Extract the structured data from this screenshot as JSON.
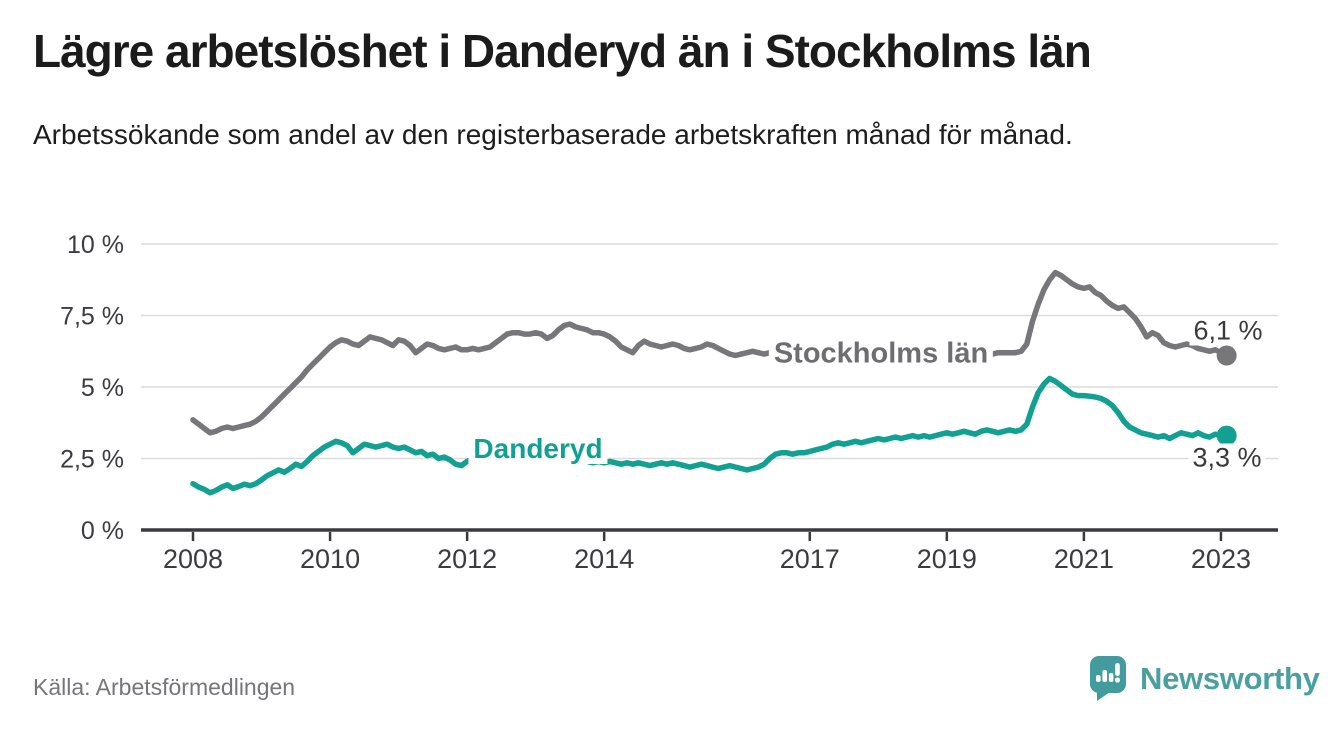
{
  "header": {
    "title": "Lägre arbetslöshet i Danderyd än i Stockholms län",
    "subtitle": "Arbetssökande som andel av den registerbaserade arbetskraften månad för månad."
  },
  "chart_data": {
    "type": "line",
    "title": "Lägre arbetslöshet i Danderyd än i Stockholms län",
    "subtitle": "Arbetssökande som andel av den registerbaserade arbetskraften månad för månad.",
    "unit": "%",
    "grid": true,
    "legend_position": "inline-labels",
    "ylim": [
      0,
      10
    ],
    "xlim": [
      2007.25,
      2023.85
    ],
    "y_ticks": [
      0,
      2.5,
      5,
      7.5,
      10
    ],
    "y_tick_labels": [
      "0 %",
      "2,5 %",
      "5 %",
      "7,5 %",
      "10 %"
    ],
    "x_tick_years": [
      2008,
      2010,
      2012,
      2014,
      2017,
      2019,
      2021,
      2023
    ],
    "x_tick_labels": [
      "2008",
      "2010",
      "2012",
      "2014",
      "2017",
      "2019",
      "2021",
      "2023"
    ],
    "start_year": 2008.0,
    "step_years": 0.08333,
    "series": [
      {
        "name": "Stockholms län",
        "color": "#77777b",
        "end_label": "6,1 %",
        "end_value": 6.1,
        "values": [
          3.85,
          3.7,
          3.55,
          3.4,
          3.45,
          3.55,
          3.6,
          3.55,
          3.6,
          3.65,
          3.7,
          3.8,
          3.95,
          4.15,
          4.35,
          4.55,
          4.75,
          4.95,
          5.15,
          5.35,
          5.6,
          5.8,
          6.0,
          6.2,
          6.4,
          6.55,
          6.65,
          6.6,
          6.5,
          6.45,
          6.6,
          6.75,
          6.7,
          6.65,
          6.55,
          6.45,
          6.65,
          6.6,
          6.45,
          6.2,
          6.35,
          6.5,
          6.45,
          6.35,
          6.3,
          6.35,
          6.4,
          6.3,
          6.3,
          6.35,
          6.3,
          6.35,
          6.4,
          6.55,
          6.7,
          6.85,
          6.9,
          6.9,
          6.85,
          6.85,
          6.9,
          6.85,
          6.7,
          6.8,
          7.0,
          7.15,
          7.2,
          7.1,
          7.05,
          7.0,
          6.9,
          6.9,
          6.85,
          6.75,
          6.6,
          6.4,
          6.3,
          6.2,
          6.45,
          6.6,
          6.5,
          6.45,
          6.4,
          6.45,
          6.5,
          6.45,
          6.35,
          6.3,
          6.35,
          6.4,
          6.5,
          6.45,
          6.35,
          6.25,
          6.15,
          6.1,
          6.15,
          6.2,
          6.25,
          6.2,
          6.15,
          6.2,
          6.25,
          6.2,
          6.15,
          6.1,
          6.15,
          6.2,
          6.2,
          6.25,
          6.2,
          6.15,
          6.2,
          6.25,
          6.3,
          6.25,
          6.2,
          6.15,
          6.2,
          6.25,
          6.2,
          6.15,
          6.1,
          6.15,
          6.2,
          6.25,
          6.2,
          6.15,
          6.1,
          6.15,
          6.2,
          6.15,
          6.15,
          6.2,
          6.15,
          6.1,
          6.15,
          6.2,
          6.25,
          6.2,
          6.15,
          6.2,
          6.2,
          6.2,
          6.2,
          6.25,
          6.5,
          7.3,
          7.9,
          8.4,
          8.75,
          9.0,
          8.9,
          8.75,
          8.6,
          8.5,
          8.45,
          8.5,
          8.3,
          8.2,
          8.0,
          7.85,
          7.75,
          7.8,
          7.6,
          7.4,
          7.1,
          6.75,
          6.9,
          6.8,
          6.55,
          6.45,
          6.4,
          6.45,
          6.5,
          6.45,
          6.35,
          6.3,
          6.25,
          6.3,
          6.2,
          6.1
        ]
      },
      {
        "name": "Danderyd",
        "color": "#12a093",
        "end_label": "3,3 %",
        "end_value": 3.3,
        "values": [
          1.62,
          1.5,
          1.42,
          1.3,
          1.38,
          1.5,
          1.58,
          1.45,
          1.52,
          1.6,
          1.55,
          1.62,
          1.75,
          1.9,
          2.0,
          2.1,
          2.02,
          2.15,
          2.3,
          2.22,
          2.4,
          2.6,
          2.75,
          2.9,
          3.0,
          3.1,
          3.05,
          2.95,
          2.7,
          2.85,
          3.0,
          2.95,
          2.9,
          2.95,
          3.0,
          2.9,
          2.85,
          2.9,
          2.8,
          2.7,
          2.75,
          2.6,
          2.65,
          2.5,
          2.55,
          2.45,
          2.3,
          2.25,
          2.4,
          2.5,
          2.45,
          2.5,
          2.55,
          2.5,
          2.55,
          2.6,
          2.55,
          2.6,
          2.65,
          2.6,
          2.65,
          2.6,
          2.65,
          2.6,
          2.55,
          2.6,
          2.55,
          2.5,
          2.45,
          2.4,
          2.35,
          2.4,
          2.35,
          2.4,
          2.35,
          2.3,
          2.35,
          2.3,
          2.35,
          2.3,
          2.25,
          2.3,
          2.35,
          2.3,
          2.35,
          2.3,
          2.25,
          2.2,
          2.25,
          2.3,
          2.25,
          2.2,
          2.15,
          2.2,
          2.25,
          2.2,
          2.15,
          2.1,
          2.15,
          2.2,
          2.3,
          2.5,
          2.65,
          2.7,
          2.7,
          2.65,
          2.7,
          2.7,
          2.75,
          2.8,
          2.85,
          2.9,
          3.0,
          3.05,
          3.0,
          3.05,
          3.1,
          3.05,
          3.1,
          3.15,
          3.2,
          3.15,
          3.2,
          3.25,
          3.2,
          3.25,
          3.3,
          3.25,
          3.3,
          3.25,
          3.3,
          3.35,
          3.4,
          3.35,
          3.4,
          3.45,
          3.4,
          3.35,
          3.45,
          3.5,
          3.45,
          3.4,
          3.45,
          3.5,
          3.45,
          3.5,
          3.7,
          4.3,
          4.8,
          5.1,
          5.3,
          5.2,
          5.05,
          4.9,
          4.75,
          4.7,
          4.7,
          4.68,
          4.65,
          4.6,
          4.5,
          4.35,
          4.1,
          3.8,
          3.6,
          3.5,
          3.4,
          3.35,
          3.3,
          3.25,
          3.3,
          3.2,
          3.3,
          3.4,
          3.35,
          3.3,
          3.4,
          3.3,
          3.25,
          3.35,
          3.3,
          3.3
        ]
      }
    ]
  },
  "style_colors": {
    "grid": "#dcdcdc",
    "axis": "#3a3a3e",
    "tick_text": "#3b3b40",
    "brand_teal": "#4aa0a1"
  },
  "footer": {
    "source": "Källa: Arbetsförmedlingen",
    "brand": "Newsworthy"
  }
}
